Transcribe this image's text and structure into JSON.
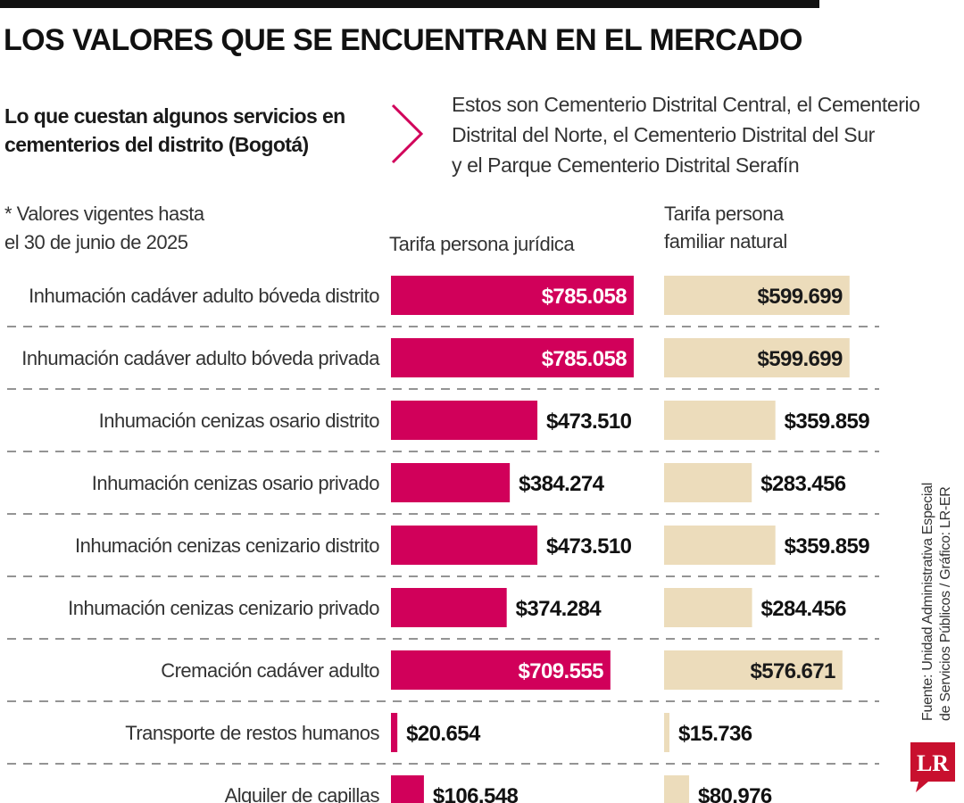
{
  "header": {
    "title": "LOS VALORES QUE SE ENCUENTRAN EN EL MERCADO",
    "subtitle_line1": "Lo que cuestan algunos servicios en",
    "subtitle_line2": "cementerios del distrito (Bogotá)",
    "note_line1": "Estos son Cementerio Distrital Central, el Cementerio",
    "note_line2": "Distrital del Norte, el Cementerio Distrital del Sur",
    "note_line3": "y el Parque Cementerio Distrital Serafín",
    "validity_line1": "* Valores vigentes hasta",
    "validity_line2": "el 30 de junio de 2025"
  },
  "columns": {
    "juridica": "Tarifa persona jurídica",
    "natural_line1": "Tarifa persona",
    "natural_line2": "familiar natural"
  },
  "footer": {
    "source_line1": "Fuente: Unidad Administrativa Especial",
    "source_line2": "de Servicios Públicos / Gráfico: LR-ER",
    "logo_text": "LR"
  },
  "colors": {
    "juridica": "#d1005a",
    "natural": "#ecdcbb",
    "chevron": "#d1005a",
    "logo": "#c8102e"
  },
  "chart_data": {
    "type": "bar",
    "orientation": "horizontal",
    "categories": [
      "Inhumación cadáver adulto bóveda distrito",
      "Inhumación cadáver adulto bóveda privada",
      "Inhumación cenizas osario distrito",
      "Inhumación cenizas osario privado",
      "Inhumación cenizas cenizario distrito",
      "Inhumación cenizas cenizario privado",
      "Cremación cadáver adulto",
      "Transporte de restos humanos",
      "Alquiler de capillas"
    ],
    "series": [
      {
        "name": "Tarifa persona jurídica",
        "values": [
          785058,
          785058,
          473510,
          384274,
          473510,
          374284,
          709555,
          20654,
          106548
        ],
        "labels": [
          "$785.058",
          "$785.058",
          "$473.510",
          "$384.274",
          "$473.510",
          "$374.284",
          "$709.555",
          "$20.654",
          "$106.548"
        ]
      },
      {
        "name": "Tarifa persona familiar natural",
        "values": [
          599699,
          599699,
          359859,
          283456,
          359859,
          284456,
          576671,
          15736,
          80976
        ],
        "labels": [
          "$599.699",
          "$599.699",
          "$359.859",
          "$283.456",
          "$359.859",
          "$284.456",
          "$576.671",
          "$15.736",
          "$80.976"
        ]
      }
    ],
    "xlim": [
      0,
      785058
    ],
    "grid": "dashed separators between rows",
    "legend": "column headers above bars"
  }
}
